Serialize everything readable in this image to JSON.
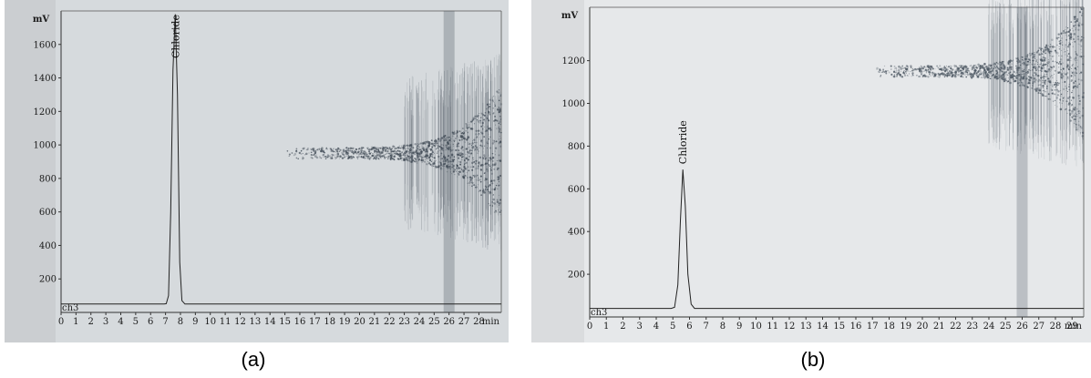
{
  "chart_data": [
    {
      "type": "line",
      "caption": "(a)",
      "ylabel": "mV",
      "channel": "ch3",
      "xunit": "min",
      "xlim": [
        0,
        29.5
      ],
      "ylim": [
        0,
        1800
      ],
      "xticks": [
        0,
        1,
        2,
        3,
        4,
        5,
        6,
        7,
        8,
        9,
        10,
        11,
        12,
        13,
        14,
        15,
        16,
        17,
        18,
        19,
        20,
        21,
        22,
        23,
        24,
        25,
        26,
        27,
        28
      ],
      "yticks": [
        200,
        400,
        600,
        800,
        1000,
        1200,
        1400,
        1600
      ],
      "background": "#d6dadd",
      "series": [
        {
          "x": [
            0,
            6.9,
            7.05,
            7.2,
            7.35,
            7.5,
            7.65,
            7.8,
            7.95,
            8.1,
            8.3,
            29.5
          ],
          "y": [
            50,
            50,
            52,
            100,
            600,
            1450,
            1780,
            1300,
            300,
            70,
            50,
            50
          ]
        }
      ],
      "peaks": [
        {
          "label": "Chloride",
          "x": 7.65
        }
      ],
      "noise_band": {
        "x_start": 15,
        "x_end": 29.5,
        "y_center": 950,
        "color": "#404a55"
      }
    },
    {
      "type": "line",
      "caption": "(b)",
      "ylabel": "mV",
      "channel": "ch3",
      "xunit": "min",
      "xlim": [
        0,
        29.7
      ],
      "ylim": [
        0,
        1450
      ],
      "xticks": [
        0,
        1,
        2,
        3,
        4,
        5,
        6,
        7,
        8,
        9,
        10,
        11,
        12,
        13,
        14,
        15,
        16,
        17,
        18,
        19,
        20,
        21,
        22,
        23,
        24,
        25,
        26,
        27,
        28,
        29
      ],
      "yticks": [
        200,
        400,
        600,
        800,
        1000,
        1200
      ],
      "background": "#e6e8ea",
      "series": [
        {
          "x": [
            0,
            4.9,
            5.1,
            5.3,
            5.45,
            5.6,
            5.75,
            5.9,
            6.1,
            6.3,
            29.7
          ],
          "y": [
            40,
            40,
            45,
            150,
            450,
            690,
            520,
            200,
            60,
            40,
            40
          ]
        }
      ],
      "peaks": [
        {
          "label": "Chloride",
          "x": 5.6
        }
      ],
      "noise_band": {
        "x_start": 17,
        "x_end": 29.7,
        "y_center": 1150,
        "color": "#4a5560"
      }
    }
  ]
}
